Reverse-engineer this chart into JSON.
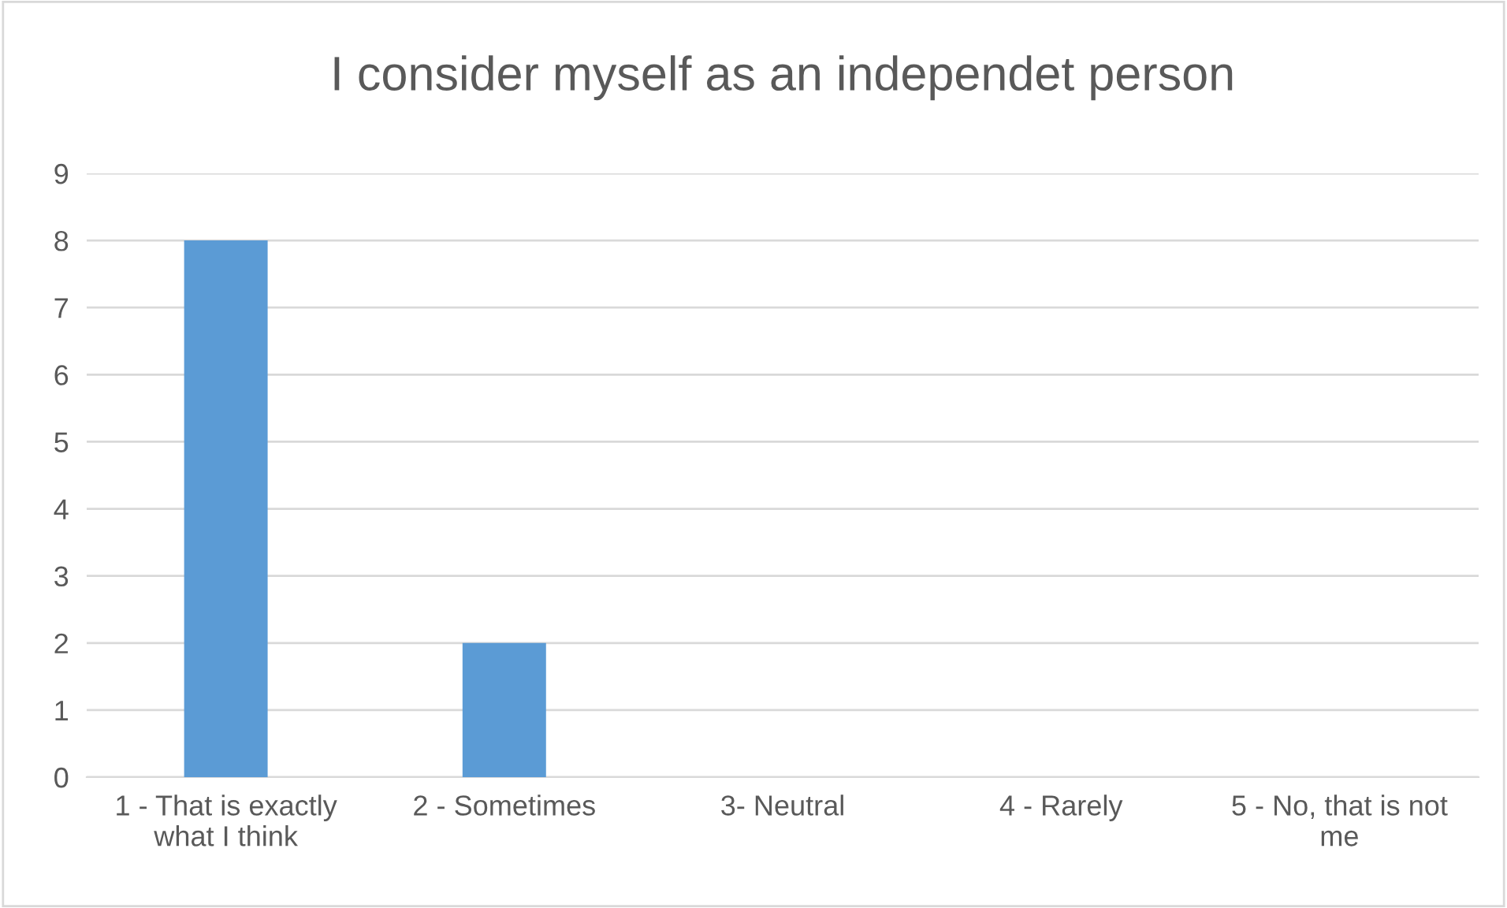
{
  "chart_data": {
    "type": "bar",
    "title": "I consider myself as an independet person",
    "categories": [
      "1 - That is exactly what I think",
      "2 - Sometimes",
      "3- Neutral",
      "4 - Rarely",
      "5 - No, that is not me"
    ],
    "values": [
      8,
      2,
      0,
      0,
      0
    ],
    "color": "#5b9bd5",
    "ylim": [
      0,
      9
    ],
    "yticks": [
      0,
      1,
      2,
      3,
      4,
      5,
      6,
      7,
      8,
      9
    ],
    "grid": "y",
    "legend": false
  }
}
